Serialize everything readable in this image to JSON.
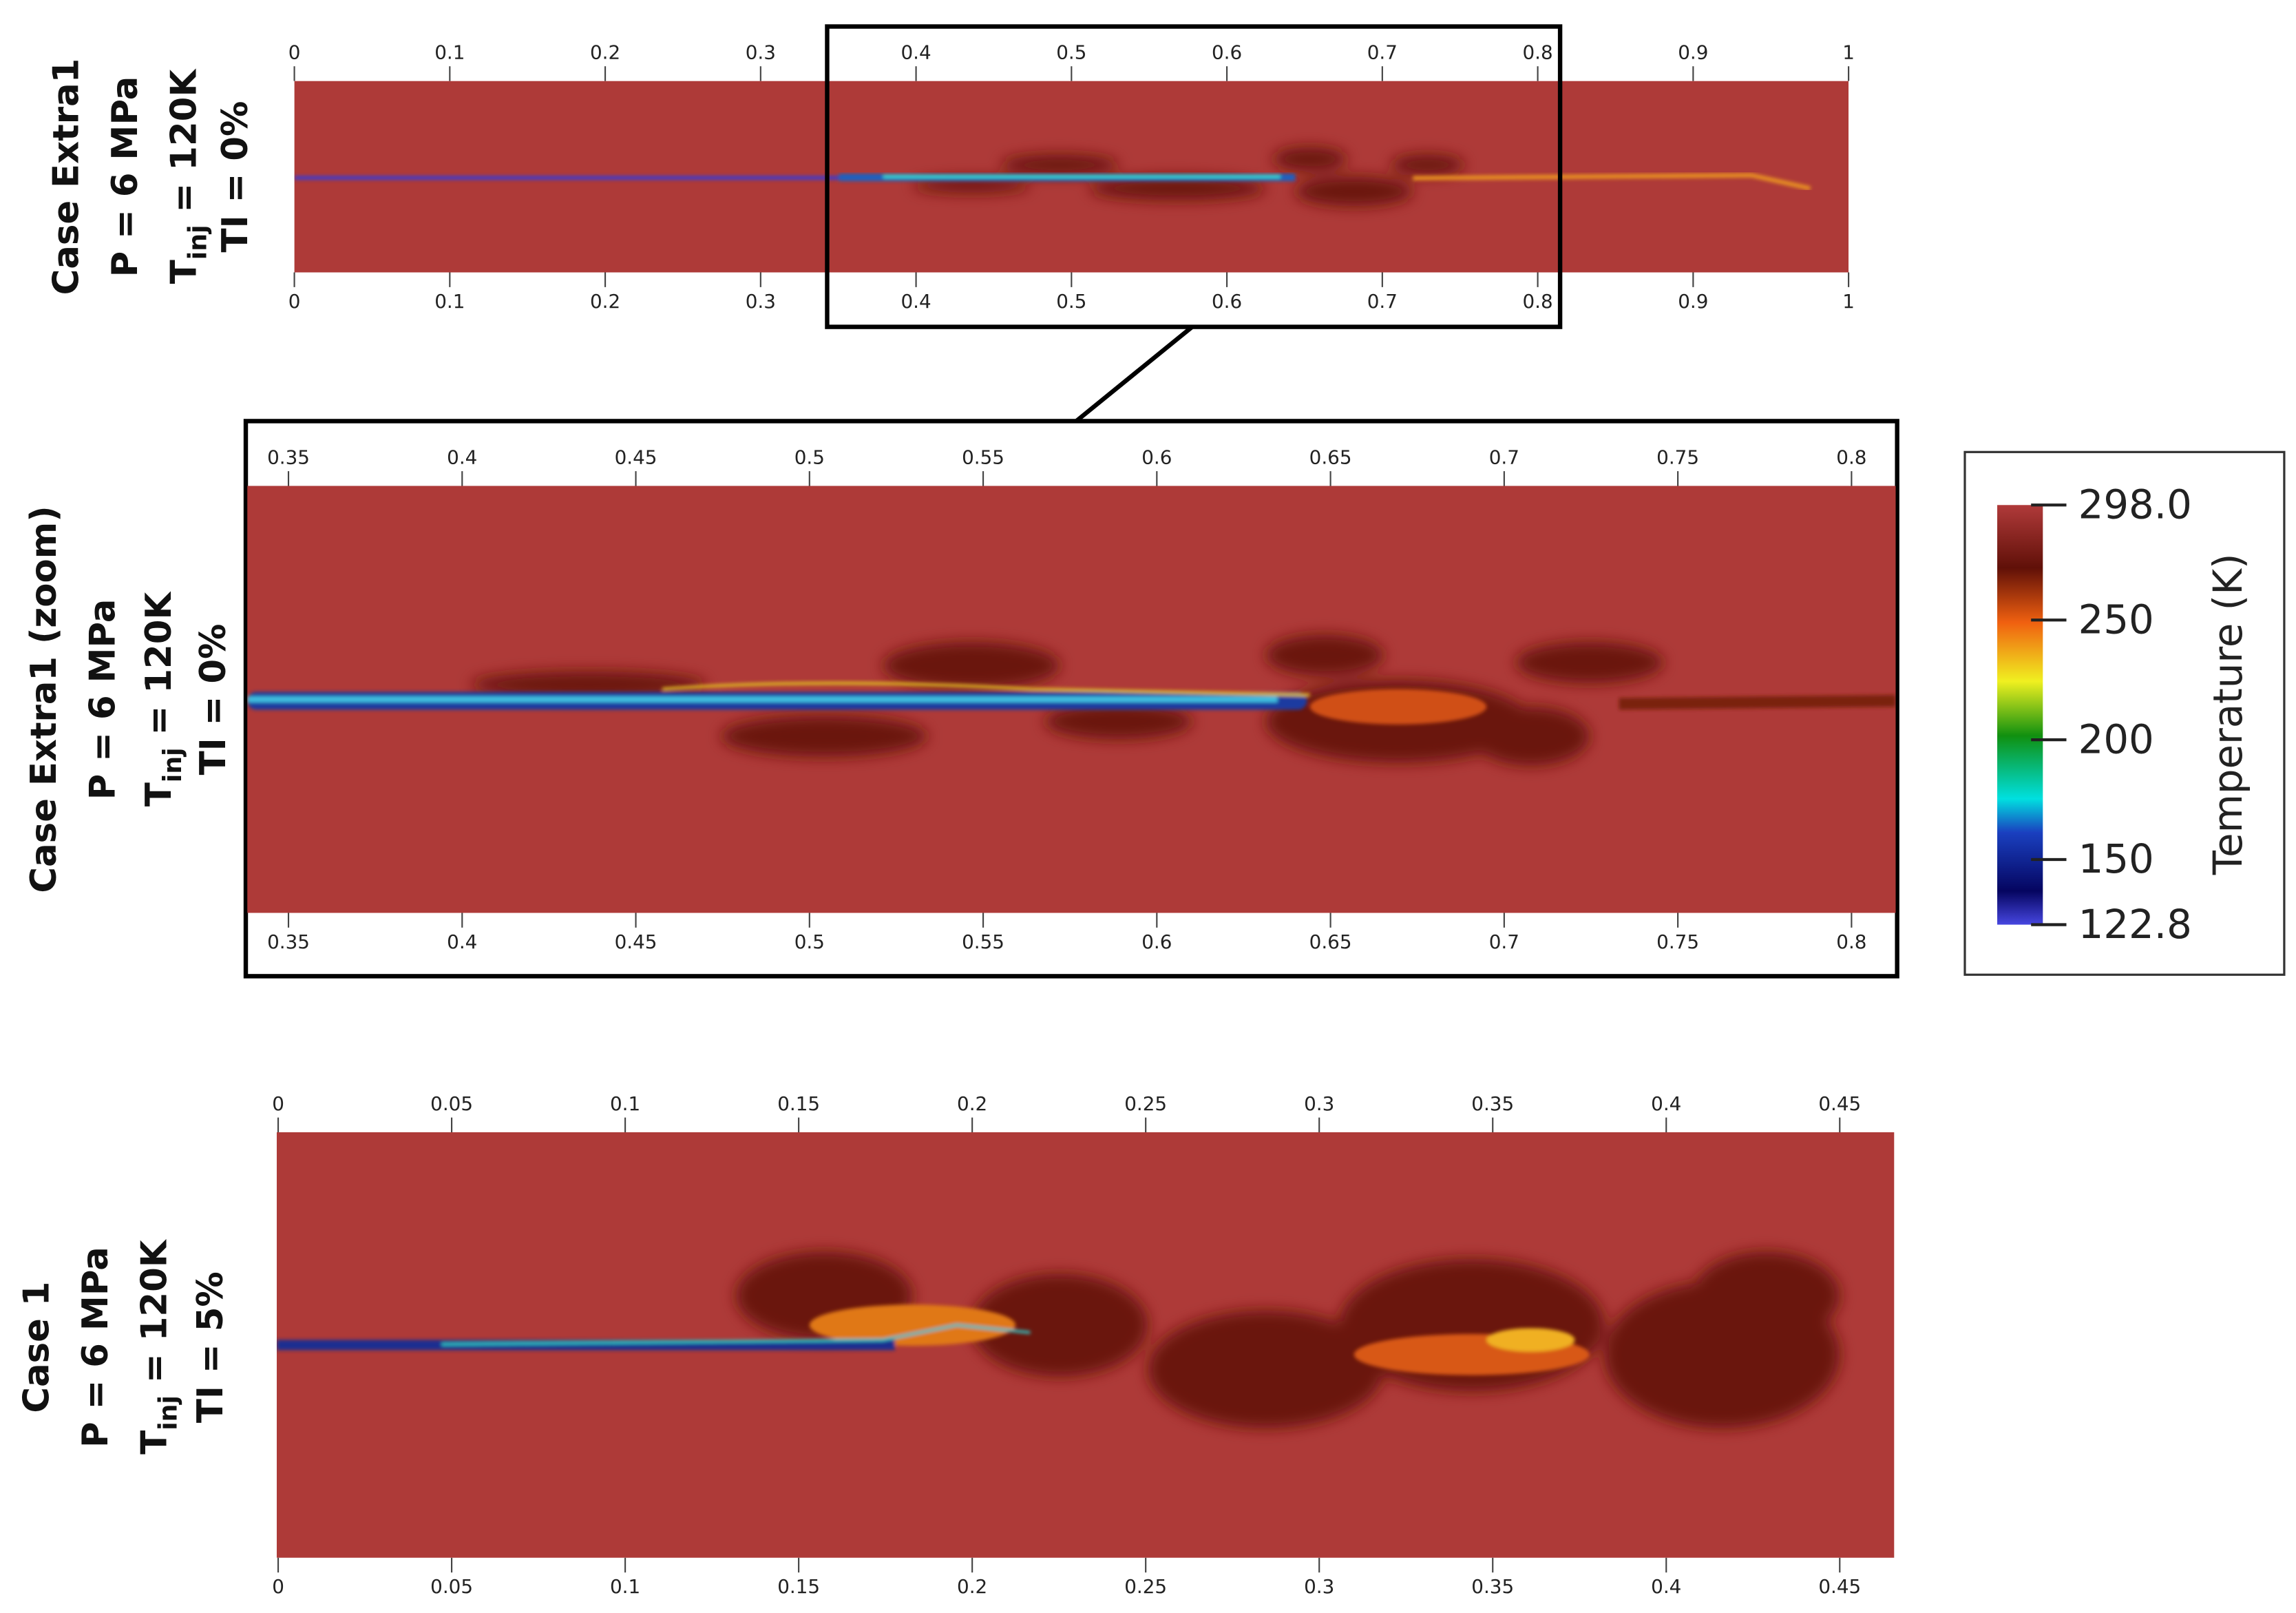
{
  "panels": [
    {
      "labels": [
        "Case Extra1",
        "P = 6 MPa",
        {
          "main": "T",
          "sub": "inj",
          "rest": " = 120K"
        },
        "TI = 0%"
      ],
      "ticks": [
        0,
        0.1,
        0.2,
        0.3,
        0.4,
        0.5,
        0.6,
        0.7,
        0.8,
        0.9,
        1
      ]
    },
    {
      "labels": [
        "Case Extra1 (zoom)",
        "P = 6 MPa",
        {
          "main": "T",
          "sub": "inj",
          "rest": " = 120K"
        },
        "TI = 0%"
      ],
      "ticks": [
        0.35,
        0.4,
        0.45,
        0.5,
        0.55,
        0.6,
        0.65,
        0.7,
        0.75,
        0.8
      ]
    },
    {
      "labels": [
        "Case 1",
        "P = 6 MPa",
        {
          "main": "T",
          "sub": "inj",
          "rest": " = 120K"
        },
        "TI = 5%"
      ],
      "ticks": [
        0,
        0.05,
        0.1,
        0.15,
        0.2,
        0.25,
        0.3,
        0.35,
        0.4,
        0.45
      ]
    }
  ],
  "colorbar": {
    "title": "Temperature (K)",
    "ticks": [
      {
        "value": 298.0,
        "label": "298.0"
      },
      250,
      200,
      150,
      122.8
    ]
  }
}
